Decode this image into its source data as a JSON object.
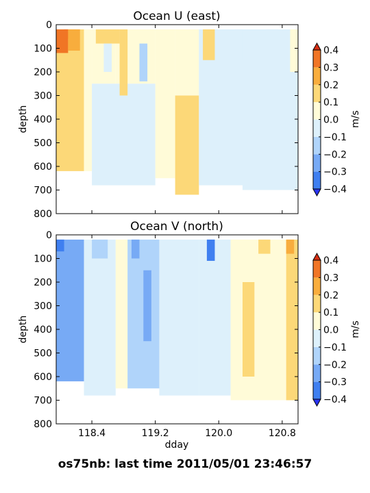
{
  "chart_data": [
    {
      "type": "heatmap",
      "title": "Ocean U (east)",
      "ylabel": "depth",
      "xlabel": "",
      "ylim": [
        800,
        0
      ],
      "y_ticks": [
        "0",
        "100",
        "200",
        "300",
        "400",
        "500",
        "600",
        "700",
        "800"
      ],
      "x_tick_values": [
        118.4,
        119.2,
        120.0,
        120.8
      ],
      "x_tick_labels": [
        "",
        "",
        "",
        ""
      ],
      "xlim": [
        117.95,
        121.0
      ],
      "colorbar": {
        "label": "m/s",
        "ticks": [
          "0.4",
          "0.3",
          "0.2",
          "0.1",
          "0.0",
          "−0.1",
          "−0.2",
          "−0.3",
          "−0.4"
        ],
        "levels": [
          -0.4,
          -0.3,
          -0.2,
          -0.1,
          0.0,
          0.1,
          0.2,
          0.3,
          0.4
        ],
        "colors": [
          "#2a35f5",
          "#3f7ff0",
          "#77aaf5",
          "#b0d4fa",
          "#ddf0fb",
          "#fffbd8",
          "#fcd878",
          "#f8ad3d",
          "#f07525",
          "#d62f13"
        ]
      },
      "data": [
        {
          "x0": 117.95,
          "x1": 118.3,
          "y0": 20,
          "y1": 620,
          "value": 0.15
        },
        {
          "x0": 118.3,
          "x1": 118.4,
          "y0": 20,
          "y1": 620,
          "value": 0.05
        },
        {
          "x0": 118.4,
          "x1": 118.7,
          "y0": 20,
          "y1": 250,
          "value": 0.05
        },
        {
          "x0": 118.7,
          "x1": 119.2,
          "y0": 20,
          "y1": 250,
          "value": 0.0
        },
        {
          "x0": 118.4,
          "x1": 119.2,
          "y0": 250,
          "y1": 680,
          "value": -0.05
        },
        {
          "x0": 119.2,
          "x1": 119.45,
          "y0": 20,
          "y1": 650,
          "value": 0.0
        },
        {
          "x0": 119.45,
          "x1": 119.75,
          "y0": 20,
          "y1": 300,
          "value": 0.0
        },
        {
          "x0": 119.45,
          "x1": 119.75,
          "y0": 300,
          "y1": 720,
          "value": 0.15
        },
        {
          "x0": 119.75,
          "x1": 120.3,
          "y0": 20,
          "y1": 680,
          "value": -0.05
        },
        {
          "x0": 120.3,
          "x1": 121.0,
          "y0": 20,
          "y1": 700,
          "value": -0.05
        },
        {
          "x0": 117.95,
          "x1": 118.1,
          "y0": 20,
          "y1": 120,
          "value": 0.3
        },
        {
          "x0": 118.05,
          "x1": 118.1,
          "y0": 20,
          "y1": 60,
          "value": 0.35
        },
        {
          "x0": 118.1,
          "x1": 118.25,
          "y0": 20,
          "y1": 110,
          "value": 0.25
        },
        {
          "x0": 118.45,
          "x1": 118.75,
          "y0": 20,
          "y1": 80,
          "value": 0.15
        },
        {
          "x0": 118.75,
          "x1": 118.85,
          "y0": 20,
          "y1": 300,
          "value": 0.15
        },
        {
          "x0": 119.0,
          "x1": 119.1,
          "y0": 80,
          "y1": 240,
          "value": -0.15
        },
        {
          "x0": 118.55,
          "x1": 118.65,
          "y0": 80,
          "y1": 200,
          "value": -0.1
        },
        {
          "x0": 119.8,
          "x1": 119.95,
          "y0": 20,
          "y1": 150,
          "value": 0.15
        },
        {
          "x0": 120.2,
          "x1": 120.3,
          "y0": 20,
          "y1": 150,
          "value": -0.1
        },
        {
          "x0": 120.6,
          "x1": 120.75,
          "y0": 20,
          "y1": 120,
          "value": -0.1
        },
        {
          "x0": 120.9,
          "x1": 121.0,
          "y0": 20,
          "y1": 200,
          "value": 0.05
        }
      ]
    },
    {
      "type": "heatmap",
      "title": "Ocean V (north)",
      "ylabel": "depth",
      "xlabel": "dday",
      "ylim": [
        800,
        0
      ],
      "y_ticks": [
        "0",
        "100",
        "200",
        "300",
        "400",
        "500",
        "600",
        "700",
        "800"
      ],
      "x_tick_values": [
        118.4,
        119.2,
        120.0,
        120.8
      ],
      "x_tick_labels": [
        "118.4",
        "119.2",
        "120.0",
        "120.8"
      ],
      "xlim": [
        117.95,
        121.0
      ],
      "colorbar": {
        "label": "m/s",
        "ticks": [
          "0.4",
          "0.3",
          "0.2",
          "0.1",
          "0.0",
          "−0.1",
          "−0.2",
          "−0.3",
          "−0.4"
        ],
        "levels": [
          -0.4,
          -0.3,
          -0.2,
          -0.1,
          0.0,
          0.1,
          0.2,
          0.3,
          0.4
        ],
        "colors": [
          "#2a35f5",
          "#3f7ff0",
          "#77aaf5",
          "#b0d4fa",
          "#ddf0fb",
          "#fffbd8",
          "#fcd878",
          "#f8ad3d",
          "#f07525",
          "#d62f13"
        ]
      },
      "data": [
        {
          "x0": 117.95,
          "x1": 118.3,
          "y0": 20,
          "y1": 620,
          "value": -0.25
        },
        {
          "x0": 117.95,
          "x1": 118.05,
          "y0": 20,
          "y1": 70,
          "value": -0.35
        },
        {
          "x0": 118.3,
          "x1": 118.7,
          "y0": 20,
          "y1": 680,
          "value": -0.05
        },
        {
          "x0": 118.7,
          "x1": 118.85,
          "y0": 20,
          "y1": 650,
          "value": 0.05
        },
        {
          "x0": 118.85,
          "x1": 119.25,
          "y0": 20,
          "y1": 650,
          "value": -0.15
        },
        {
          "x0": 119.05,
          "x1": 119.15,
          "y0": 150,
          "y1": 450,
          "value": -0.25
        },
        {
          "x0": 118.9,
          "x1": 119.0,
          "y0": 20,
          "y1": 100,
          "value": -0.3
        },
        {
          "x0": 119.25,
          "x1": 119.75,
          "y0": 20,
          "y1": 680,
          "value": -0.05
        },
        {
          "x0": 119.75,
          "x1": 120.15,
          "y0": 20,
          "y1": 680,
          "value": -0.05
        },
        {
          "x0": 119.85,
          "x1": 119.95,
          "y0": 20,
          "y1": 110,
          "value": -0.35
        },
        {
          "x0": 120.15,
          "x1": 120.85,
          "y0": 20,
          "y1": 700,
          "value": 0.05
        },
        {
          "x0": 120.3,
          "x1": 120.45,
          "y0": 200,
          "y1": 600,
          "value": 0.15
        },
        {
          "x0": 120.5,
          "x1": 120.65,
          "y0": 20,
          "y1": 80,
          "value": 0.15
        },
        {
          "x0": 120.85,
          "x1": 121.0,
          "y0": 20,
          "y1": 700,
          "value": 0.15
        },
        {
          "x0": 120.85,
          "x1": 120.95,
          "y0": 20,
          "y1": 80,
          "value": 0.25
        },
        {
          "x0": 119.45,
          "x1": 119.6,
          "y0": 60,
          "y1": 200,
          "value": -0.1
        },
        {
          "x0": 118.4,
          "x1": 118.6,
          "y0": 20,
          "y1": 100,
          "value": -0.15
        }
      ]
    }
  ],
  "footer": {
    "text": "os75nb: last time 2011/05/01 23:46:57"
  }
}
